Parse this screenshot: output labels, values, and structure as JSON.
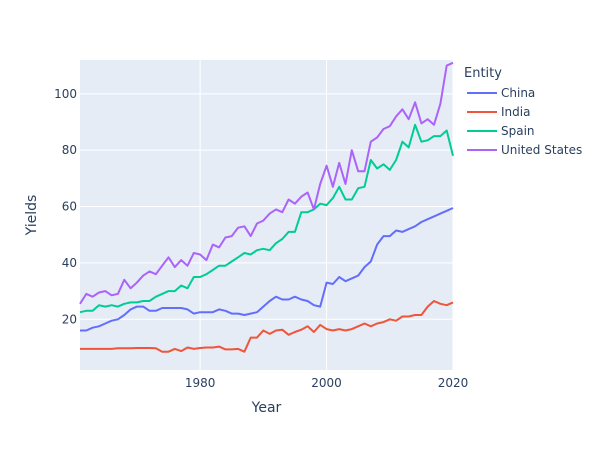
{
  "chart_data": {
    "type": "line",
    "title": "",
    "xlabel": "Year",
    "ylabel": "Yields",
    "xlim": [
      1961,
      2020
    ],
    "ylim": [
      2,
      112
    ],
    "xticks": [
      1980,
      2000,
      2020
    ],
    "yticks": [
      20,
      40,
      60,
      80,
      100
    ],
    "grid": true,
    "legend": {
      "title": "Entity",
      "placement": "right"
    },
    "x": [
      1961,
      1962,
      1963,
      1964,
      1965,
      1966,
      1967,
      1968,
      1969,
      1970,
      1971,
      1972,
      1973,
      1974,
      1975,
      1976,
      1977,
      1978,
      1979,
      1980,
      1981,
      1982,
      1983,
      1984,
      1985,
      1986,
      1987,
      1988,
      1989,
      1990,
      1991,
      1992,
      1993,
      1994,
      1995,
      1996,
      1997,
      1998,
      1999,
      2000,
      2001,
      2002,
      2003,
      2004,
      2005,
      2006,
      2007,
      2008,
      2009,
      2010,
      2011,
      2012,
      2013,
      2014,
      2015,
      2016,
      2017,
      2018,
      2019,
      2020
    ],
    "series": [
      {
        "name": "China",
        "color": "#636efa",
        "values": [
          16,
          16,
          17,
          17.5,
          18.5,
          19.5,
          20,
          21.5,
          23.5,
          24.5,
          24.5,
          23,
          23,
          24,
          24,
          24,
          24,
          23.5,
          22,
          22.5,
          22.5,
          22.5,
          23.5,
          23,
          22,
          22,
          21.5,
          22,
          22.5,
          24.5,
          26.5,
          28,
          27,
          27,
          28,
          27,
          26.5,
          25,
          24.5,
          33,
          32.5,
          35,
          33.5,
          34.5,
          35.5,
          38.5,
          40.5,
          46.5,
          49.5,
          49.5,
          51.5,
          51,
          52,
          53,
          54.5,
          55.5,
          56.5,
          57.5,
          58.5,
          59.5
        ]
      },
      {
        "name": "India",
        "color": "#ef553b",
        "values": [
          9.5,
          9.5,
          9.5,
          9.5,
          9.5,
          9.5,
          9.7,
          9.7,
          9.7,
          9.8,
          9.8,
          9.8,
          9.7,
          8.5,
          8.5,
          9.5,
          8.7,
          10,
          9.5,
          9.8,
          10,
          10,
          10.3,
          9.3,
          9.3,
          9.5,
          8.5,
          13.5,
          13.5,
          16,
          14.8,
          16,
          16.3,
          14.5,
          15.5,
          16.3,
          17.5,
          15.5,
          18,
          16.5,
          16,
          16.5,
          16,
          16.5,
          17.5,
          18.5,
          17.5,
          18.5,
          19,
          20,
          19.5,
          21,
          21,
          21.5,
          21.5,
          24.5,
          26.5,
          25.5,
          25,
          26
        ]
      },
      {
        "name": "Spain",
        "color": "#00cc96",
        "values": [
          22.5,
          23,
          23,
          25,
          24.5,
          25,
          24.5,
          25.5,
          26,
          26,
          26.5,
          26.5,
          28,
          29,
          30,
          30,
          32,
          31,
          35,
          35,
          36,
          37.5,
          39,
          39,
          40.5,
          42,
          43.5,
          43,
          44.5,
          45,
          44.5,
          47,
          48.5,
          51,
          51,
          58,
          58,
          59,
          61,
          60.5,
          63,
          67,
          62.5,
          62.5,
          66.5,
          67,
          76.5,
          73.5,
          75,
          73,
          76.5,
          83,
          81,
          89,
          83,
          83.5,
          85,
          85,
          87,
          78
        ]
      },
      {
        "name": "United States",
        "color": "#ab63fa",
        "values": [
          25.5,
          29,
          28,
          29.5,
          30,
          28.5,
          29,
          34,
          31,
          33,
          35.5,
          37,
          36,
          39,
          42,
          38.5,
          41,
          39,
          43.5,
          43,
          41,
          46.5,
          45.5,
          49,
          49.5,
          52.5,
          53,
          49.5,
          54,
          55,
          57.5,
          59,
          58,
          62.5,
          61,
          63.5,
          65,
          59,
          68,
          74.5,
          67,
          75.5,
          68,
          80,
          72.5,
          72.5,
          83,
          84.5,
          87.5,
          88.5,
          92,
          94.5,
          91,
          97,
          89.5,
          91,
          89,
          96.5,
          110,
          111
        ]
      }
    ]
  }
}
